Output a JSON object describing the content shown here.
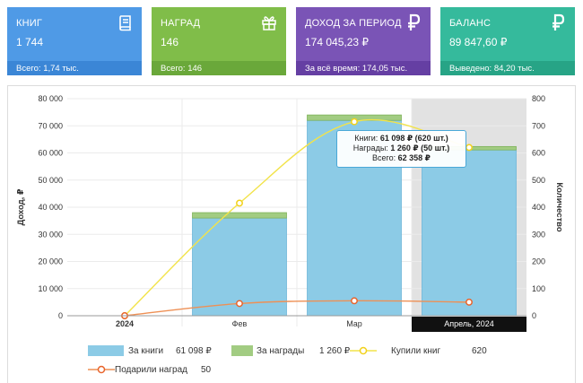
{
  "cards": [
    {
      "title": "КНИГ",
      "value": "1 744",
      "footer": "Всего: 1,74 тыс.",
      "color": "#4f9ae6",
      "footer_color": "#3b86d6",
      "icon": "book-icon"
    },
    {
      "title": "НАГРАД",
      "value": "146",
      "footer": "Всего: 146",
      "color": "#80bd49",
      "footer_color": "#6aa83a",
      "icon": "gift-icon"
    },
    {
      "title": "ДОХОД ЗА ПЕРИОД",
      "value": "174 045,23 ₽",
      "footer": "За всё время: 174,05 тыс.",
      "color": "#7a54b6",
      "footer_color": "#653fa3",
      "icon": "ruble-icon"
    },
    {
      "title": "БАЛАНС",
      "value": "89 847,60 ₽",
      "footer": "Выведено: 84,20 тыс.",
      "color": "#35ba9c",
      "footer_color": "#27a486",
      "icon": "ruble-icon"
    }
  ],
  "chart_data": {
    "type": "bar",
    "categories": [
      "2024",
      "Фев",
      "Мар",
      "Апрель, 2024"
    ],
    "highlighted_category": "Апрель, 2024",
    "ylabel": "Доход, ₽",
    "y2label": "Количество",
    "ylim": [
      0,
      80000
    ],
    "y2lim": [
      0,
      800
    ],
    "yticks": [
      "0",
      "10 000",
      "20 000",
      "30 000",
      "40 000",
      "50 000",
      "60 000",
      "70 000",
      "80 000"
    ],
    "y2ticks": [
      "0",
      "100",
      "200",
      "300",
      "400",
      "500",
      "600",
      "700",
      "800"
    ],
    "grid": true,
    "legend_position": "bottom",
    "series": [
      {
        "name": "За книги",
        "kind": "bar",
        "axis": "left",
        "values": [
          0,
          36000,
          72000,
          61098
        ],
        "color": "#8ccbe6",
        "border": "#6cb6d9",
        "legend_value": "61 098 ₽"
      },
      {
        "name": "За награды",
        "kind": "bar",
        "axis": "left",
        "values": [
          0,
          2000,
          2000,
          1260
        ],
        "color": "#a2cc82",
        "border": "#7fb35a",
        "legend_value": "1 260 ₽"
      },
      {
        "name": "Купили книг",
        "kind": "line",
        "axis": "right",
        "values": [
          0,
          415,
          715,
          620
        ],
        "color": "#f2e34a",
        "marker": "#f2d11a",
        "legend_value": "620"
      },
      {
        "name": "Подарили наград",
        "kind": "line",
        "axis": "right",
        "values": [
          0,
          45,
          55,
          50
        ],
        "color": "#ee9055",
        "marker": "#e8642c",
        "legend_value": "50"
      }
    ],
    "tooltip": {
      "l1_label": "Книги:",
      "l1_value": "61 098 ₽ (620 шт.)",
      "l2_label": "Награды:",
      "l2_value": "1 260 ₽ (50 шт.)",
      "l3_label": "Всего:",
      "l3_value": "62 358 ₽"
    }
  }
}
